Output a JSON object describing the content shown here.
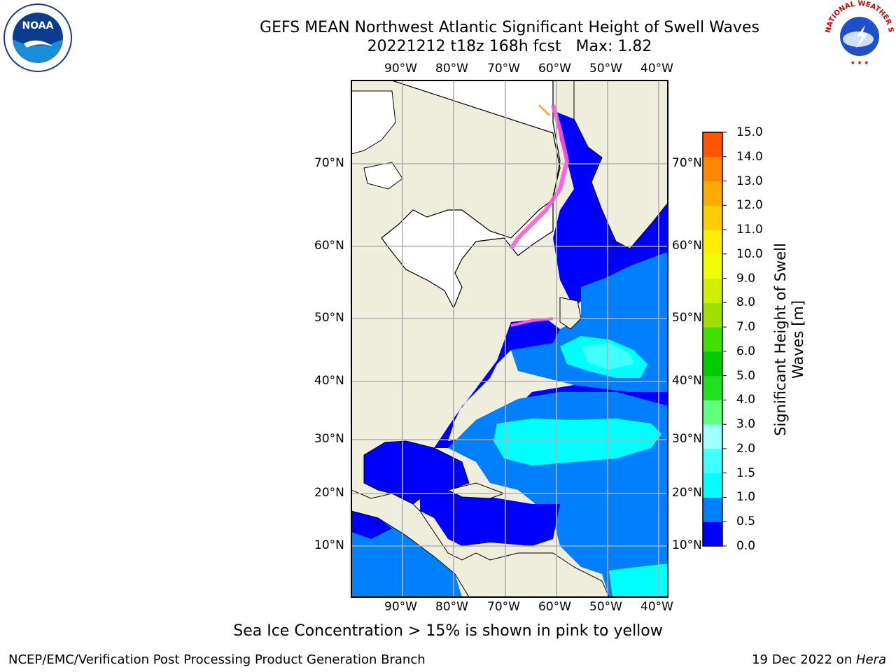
{
  "title": {
    "line1": "GEFS MEAN Northwest Atlantic Significant Height of Swell Waves",
    "line2": "20221212 t18z 168h fcst   Max: 1.82"
  },
  "map": {
    "lon_labels": [
      "90°W",
      "80°W",
      "70°W",
      "60°W",
      "50°W",
      "40°W"
    ],
    "lat_labels": [
      "70°N",
      "60°N",
      "50°N",
      "40°N",
      "30°N",
      "20°N",
      "10°N"
    ],
    "colors": {
      "land": "#efeddc",
      "ice_free_land": "#ffffff",
      "grid": "#b0b0b0",
      "coast": "#000000"
    }
  },
  "colorbar": {
    "label": "Significant Height of Swell Waves [m]",
    "ticks": [
      "15.0",
      "14.0",
      "13.0",
      "12.0",
      "11.0",
      "10.0",
      "9.0",
      "8.0",
      "7.0",
      "6.0",
      "5.0",
      "4.0",
      "3.0",
      "2.0",
      "1.5",
      "1.0",
      "0.5",
      "0.0"
    ],
    "colors": [
      "#0000ff",
      "#0080ff",
      "#00ffff",
      "#40ffff",
      "#a0ffff",
      "#60ff80",
      "#20e020",
      "#00cc00",
      "#40e000",
      "#a0e000",
      "#d0f000",
      "#f0ff00",
      "#ffee00",
      "#ffcc00",
      "#ffaa00",
      "#ff8800",
      "#ff5500",
      "#ff2200",
      "#ff0000"
    ]
  },
  "caption": "Sea Ice Concentration > 15% is shown in pink to yellow",
  "footer": {
    "credit": "NCEP/EMC/Verification Post Processing Product Generation Branch",
    "date_prefix": "19 Dec 2022 on ",
    "date_machine": "Hera"
  },
  "logos": {
    "noaa": "NOAA",
    "nws": "NATIONAL WEATHER SERVICE"
  }
}
